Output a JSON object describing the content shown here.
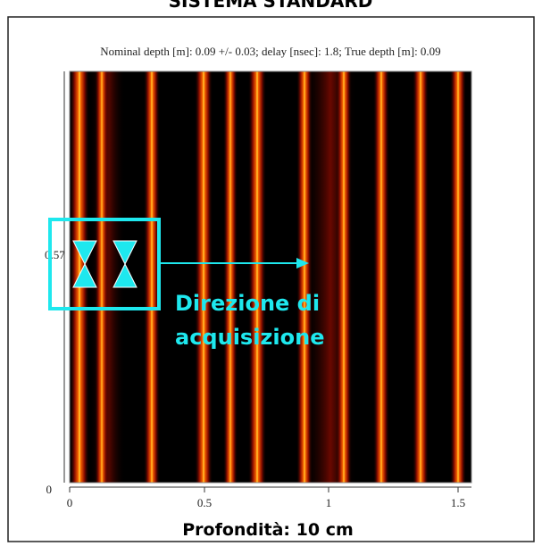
{
  "title": "SISTEMA STANDARD",
  "header": "Nominal depth [m]: 0.09 +/- 0.03;   delay [nsec]: 1.8;   True depth [m]: 0.09",
  "annotation": {
    "lines": [
      "Direzione di",
      "acquisizione"
    ]
  },
  "footer": "Profondità: 10 cm",
  "x_tick_labels": [
    "0",
    "0.5",
    "1",
    "1.5"
  ],
  "y_tick_labels": [
    "0",
    "0.57"
  ]
}
